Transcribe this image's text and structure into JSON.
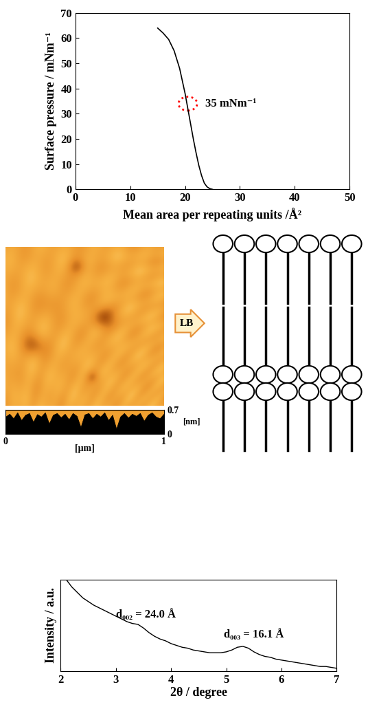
{
  "chart_data": [
    {
      "type": "line",
      "x": [
        15,
        16,
        17,
        18,
        19,
        19.5,
        20,
        20.5,
        21,
        21.5,
        22,
        22.5,
        23,
        23.5,
        24,
        24.5,
        25
      ],
      "values": [
        64,
        62,
        59.5,
        55,
        48,
        43,
        38,
        32,
        26,
        20,
        14.5,
        9.5,
        5.5,
        2.5,
        1,
        0.3,
        0
      ],
      "color": "#000000",
      "xlabel": "Mean area per repeating units /Å²",
      "ylabel": "Surface pressure / mNm⁻¹",
      "xlim": [
        0,
        50
      ],
      "xticks": [
        0,
        10,
        20,
        30,
        40,
        50
      ],
      "ylim": [
        0,
        70
      ],
      "yticks": [
        0,
        10,
        20,
        30,
        40,
        50,
        60,
        70
      ],
      "annotations": [
        {
          "text": "35 mNm⁻¹",
          "x": 20.5,
          "y": 34
        }
      ]
    },
    {
      "type": "area",
      "x": [
        0,
        0.025,
        0.05,
        0.075,
        0.1,
        0.125,
        0.15,
        0.175,
        0.2,
        0.225,
        0.25,
        0.275,
        0.3,
        0.325,
        0.35,
        0.375,
        0.4,
        0.425,
        0.45,
        0.475,
        0.5,
        0.525,
        0.55,
        0.575,
        0.6,
        0.625,
        0.65,
        0.675,
        0.7,
        0.725,
        0.75,
        0.775,
        0.8,
        0.825,
        0.85,
        0.875,
        0.9,
        0.925,
        0.95,
        0.975,
        1
      ],
      "values": [
        0.5,
        0.58,
        0.45,
        0.62,
        0.4,
        0.55,
        0.6,
        0.35,
        0.57,
        0.5,
        0.62,
        0.3,
        0.55,
        0.6,
        0.48,
        0.58,
        0.42,
        0.6,
        0.52,
        0.2,
        0.56,
        0.6,
        0.45,
        0.58,
        0.5,
        0.62,
        0.4,
        0.55,
        0.15,
        0.5,
        0.6,
        0.47,
        0.58,
        0.52,
        0.6,
        0.38,
        0.55,
        0.62,
        0.5,
        0.45,
        0.58
      ],
      "color": "#000000",
      "xlabel": "[μm]",
      "ylabel": "[nm]",
      "xlim": [
        0,
        1
      ],
      "xticks": [
        0,
        1
      ],
      "ylim": [
        0,
        0.7
      ],
      "yticks": [
        0,
        0.7
      ]
    },
    {
      "type": "line",
      "x": [
        2.1,
        2.2,
        2.3,
        2.4,
        2.5,
        2.6,
        2.7,
        2.8,
        2.9,
        3.0,
        3.1,
        3.2,
        3.3,
        3.4,
        3.5,
        3.6,
        3.7,
        3.8,
        3.9,
        4.0,
        4.1,
        4.2,
        4.3,
        4.4,
        4.5,
        4.6,
        4.7,
        4.8,
        4.9,
        5.0,
        5.1,
        5.2,
        5.3,
        5.4,
        5.5,
        5.6,
        5.7,
        5.8,
        5.9,
        6.0,
        6.1,
        6.2,
        6.3,
        6.4,
        6.5,
        6.6,
        6.7,
        6.8,
        6.9,
        7.0
      ],
      "values": [
        100,
        92,
        86,
        80,
        76,
        72,
        69,
        66,
        63,
        60,
        57,
        54,
        52,
        51,
        47,
        42,
        38,
        35,
        33,
        30,
        28,
        26,
        25,
        23,
        22,
        21,
        20,
        20,
        20,
        21,
        23,
        26,
        27,
        25,
        21,
        18,
        16,
        15,
        13,
        12,
        11,
        10,
        9,
        8,
        7,
        6,
        5,
        5,
        4,
        3
      ],
      "color": "#000000",
      "xlabel": "2θ / degree",
      "ylabel": "Intensity / a.u.",
      "xlim": [
        2,
        7
      ],
      "xticks": [
        2,
        3,
        4,
        5,
        6,
        7
      ],
      "ylim": [
        0,
        100
      ],
      "yticks": [],
      "tick_labels": "x",
      "annotations": [
        {
          "text": "d₀₀₂ = 24.0 Å",
          "x": 3.0,
          "y": 62
        },
        {
          "text": "d₀₀₃ = 16.1 Å",
          "x": 4.95,
          "y": 40
        }
      ]
    }
  ],
  "diagram": {
    "arrow_label": "LB"
  }
}
